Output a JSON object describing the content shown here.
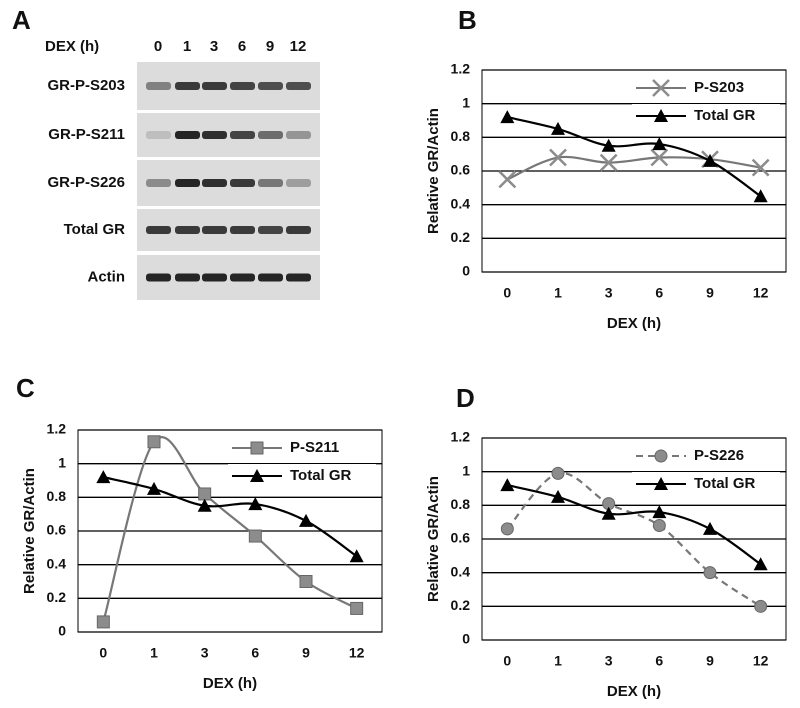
{
  "blot": {
    "panel_label": "A",
    "header": "DEX (h)",
    "lanes": [
      "0",
      "1",
      "3",
      "6",
      "9",
      "12"
    ],
    "rows": [
      "GR-P-S203",
      "GR-P-S211",
      "GR-P-S226",
      "Total GR",
      "Actin"
    ]
  },
  "chart_data": [
    {
      "type": "line",
      "panel_label": "B",
      "y_label": "Relative GR/Actin",
      "x_label": "DEX  (h)",
      "categories": [
        "0",
        "1",
        "3",
        "6",
        "9",
        "12"
      ],
      "ylim": [
        0,
        1.2
      ],
      "yticks": [
        0,
        0.2,
        0.4,
        0.6,
        0.8,
        1,
        1.2
      ],
      "grid": true,
      "legend": "upper right",
      "series": [
        {
          "name": "P-S203",
          "color": "#8c8c8c",
          "marker": "x",
          "dash": false,
          "values": [
            0.55,
            0.68,
            0.65,
            0.68,
            0.67,
            0.62
          ]
        },
        {
          "name": "Total GR",
          "color": "#000000",
          "marker": "triangle",
          "dash": false,
          "values": [
            0.92,
            0.85,
            0.75,
            0.76,
            0.66,
            0.45
          ]
        }
      ]
    },
    {
      "type": "line",
      "panel_label": "C",
      "y_label": "Relative GR/Actin",
      "x_label": "DEX  (h)",
      "categories": [
        "0",
        "1",
        "3",
        "6",
        "9",
        "12"
      ],
      "ylim": [
        0,
        1.2
      ],
      "yticks": [
        0,
        0.2,
        0.4,
        0.6,
        0.8,
        1,
        1.2
      ],
      "grid": true,
      "legend": "upper right",
      "series": [
        {
          "name": "P-S211",
          "color": "#8c8c8c",
          "marker": "square",
          "dash": false,
          "values": [
            0.06,
            1.13,
            0.82,
            0.57,
            0.3,
            0.14
          ]
        },
        {
          "name": "Total GR",
          "color": "#000000",
          "marker": "triangle",
          "dash": false,
          "values": [
            0.92,
            0.85,
            0.75,
            0.76,
            0.66,
            0.45
          ]
        }
      ]
    },
    {
      "type": "line",
      "panel_label": "D",
      "y_label": "Relative GR/Actin",
      "x_label": "DEX  (h)",
      "categories": [
        "0",
        "1",
        "3",
        "6",
        "9",
        "12"
      ],
      "ylim": [
        0,
        1.2
      ],
      "yticks": [
        0,
        0.2,
        0.4,
        0.6,
        0.8,
        1,
        1.2
      ],
      "grid": true,
      "legend": "upper right",
      "series": [
        {
          "name": "P-S226",
          "color": "#8c8c8c",
          "marker": "circle",
          "dash": true,
          "values": [
            0.66,
            0.99,
            0.81,
            0.68,
            0.4,
            0.2
          ]
        },
        {
          "name": "Total GR",
          "color": "#000000",
          "marker": "triangle",
          "dash": false,
          "values": [
            0.92,
            0.85,
            0.75,
            0.76,
            0.66,
            0.45
          ]
        }
      ]
    }
  ]
}
